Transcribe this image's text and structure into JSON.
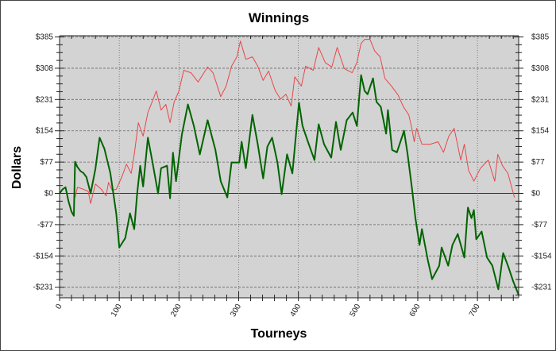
{
  "chart_data": {
    "type": "line",
    "title": "Winnings",
    "xlabel": "Tourneys",
    "ylabel": "Dollars",
    "xlim": [
      0,
      769
    ],
    "ylim": [
      -257,
      388
    ],
    "xticks": [
      0,
      100,
      200,
      300,
      400,
      500,
      600,
      700
    ],
    "xtick_labels": [
      "0",
      "100",
      "200",
      "300",
      "400",
      "500",
      "600",
      "700"
    ],
    "yticks": [
      385,
      308,
      231,
      154,
      77,
      0,
      -77,
      -154,
      -231
    ],
    "ytick_labels": [
      "$385",
      "$308",
      "$231",
      "$154",
      "$77",
      "$0",
      "-$77",
      "-$154",
      "-$231"
    ],
    "grid": true,
    "background": "#d3d3d3",
    "series": [
      {
        "color": "#006400",
        "points": [
          [
            0,
            0
          ],
          [
            5,
            10
          ],
          [
            10,
            15
          ],
          [
            15,
            -20
          ],
          [
            20,
            -45
          ],
          [
            24,
            -55
          ],
          [
            26,
            78
          ],
          [
            30,
            65
          ],
          [
            35,
            55
          ],
          [
            40,
            50
          ],
          [
            45,
            40
          ],
          [
            52,
            0
          ],
          [
            60,
            60
          ],
          [
            67,
            137
          ],
          [
            75,
            110
          ],
          [
            85,
            50
          ],
          [
            95,
            -50
          ],
          [
            100,
            -133
          ],
          [
            110,
            -110
          ],
          [
            118,
            -49
          ],
          [
            125,
            -88
          ],
          [
            130,
            0
          ],
          [
            135,
            68
          ],
          [
            140,
            17
          ],
          [
            148,
            137
          ],
          [
            155,
            82
          ],
          [
            165,
            0
          ],
          [
            170,
            62
          ],
          [
            180,
            68
          ],
          [
            185,
            -12
          ],
          [
            190,
            100
          ],
          [
            195,
            30
          ],
          [
            205,
            146
          ],
          [
            215,
            219
          ],
          [
            225,
            166
          ],
          [
            235,
            96
          ],
          [
            248,
            180
          ],
          [
            261,
            107
          ],
          [
            270,
            30
          ],
          [
            281,
            -10
          ],
          [
            288,
            76
          ],
          [
            301,
            76
          ],
          [
            305,
            127
          ],
          [
            312,
            62
          ],
          [
            323,
            193
          ],
          [
            332,
            121
          ],
          [
            341,
            37
          ],
          [
            348,
            115
          ],
          [
            356,
            137
          ],
          [
            365,
            76
          ],
          [
            372,
            -2
          ],
          [
            381,
            96
          ],
          [
            390,
            49
          ],
          [
            401,
            223
          ],
          [
            407,
            166
          ],
          [
            416,
            127
          ],
          [
            427,
            82
          ],
          [
            434,
            170
          ],
          [
            443,
            121
          ],
          [
            455,
            88
          ],
          [
            463,
            176
          ],
          [
            471,
            107
          ],
          [
            481,
            180
          ],
          [
            491,
            199
          ],
          [
            498,
            166
          ],
          [
            505,
            291
          ],
          [
            511,
            252
          ],
          [
            516,
            244
          ],
          [
            525,
            283
          ],
          [
            531,
            225
          ],
          [
            538,
            213
          ],
          [
            547,
            147
          ],
          [
            550,
            205
          ],
          [
            557,
            107
          ],
          [
            565,
            101
          ],
          [
            577,
            154
          ],
          [
            583,
            96
          ],
          [
            591,
            4
          ],
          [
            596,
            -61
          ],
          [
            603,
            -127
          ],
          [
            607,
            -88
          ],
          [
            617,
            -166
          ],
          [
            624,
            -211
          ],
          [
            636,
            -178
          ],
          [
            640,
            -133
          ],
          [
            651,
            -178
          ],
          [
            658,
            -127
          ],
          [
            667,
            -100
          ],
          [
            678,
            -158
          ],
          [
            684,
            -35
          ],
          [
            690,
            -61
          ],
          [
            694,
            -41
          ],
          [
            698,
            -113
          ],
          [
            707,
            -94
          ],
          [
            716,
            -158
          ],
          [
            725,
            -178
          ],
          [
            735,
            -236
          ],
          [
            743,
            -147
          ],
          [
            751,
            -178
          ],
          [
            760,
            -217
          ],
          [
            769,
            -250
          ]
        ]
      },
      {
        "color": "#e8474a",
        "points": [
          [
            26,
            -10
          ],
          [
            30,
            15
          ],
          [
            40,
            10
          ],
          [
            48,
            5
          ],
          [
            52,
            -25
          ],
          [
            60,
            23
          ],
          [
            70,
            10
          ],
          [
            78,
            -6
          ],
          [
            82,
            27
          ],
          [
            88,
            8
          ],
          [
            95,
            10
          ],
          [
            105,
            43
          ],
          [
            112,
            72
          ],
          [
            120,
            49
          ],
          [
            125,
            96
          ],
          [
            132,
            174
          ],
          [
            140,
            141
          ],
          [
            148,
            199
          ],
          [
            155,
            225
          ],
          [
            162,
            252
          ],
          [
            170,
            205
          ],
          [
            178,
            219
          ],
          [
            185,
            174
          ],
          [
            192,
            225
          ],
          [
            200,
            252
          ],
          [
            208,
            303
          ],
          [
            220,
            297
          ],
          [
            232,
            274
          ],
          [
            248,
            311
          ],
          [
            257,
            297
          ],
          [
            270,
            238
          ],
          [
            279,
            264
          ],
          [
            288,
            313
          ],
          [
            297,
            336
          ],
          [
            303,
            375
          ],
          [
            312,
            330
          ],
          [
            323,
            336
          ],
          [
            332,
            313
          ],
          [
            341,
            278
          ],
          [
            350,
            301
          ],
          [
            361,
            254
          ],
          [
            370,
            232
          ],
          [
            379,
            244
          ],
          [
            388,
            215
          ],
          [
            394,
            287
          ],
          [
            405,
            264
          ],
          [
            412,
            313
          ],
          [
            425,
            303
          ],
          [
            434,
            359
          ],
          [
            445,
            322
          ],
          [
            456,
            311
          ],
          [
            465,
            359
          ],
          [
            477,
            307
          ],
          [
            490,
            297
          ],
          [
            498,
            322
          ],
          [
            505,
            369
          ],
          [
            511,
            379
          ],
          [
            520,
            379
          ],
          [
            528,
            350
          ],
          [
            537,
            336
          ],
          [
            545,
            283
          ],
          [
            556,
            264
          ],
          [
            567,
            242
          ],
          [
            576,
            213
          ],
          [
            585,
            193
          ],
          [
            590,
            160
          ],
          [
            594,
            127
          ],
          [
            598,
            160
          ],
          [
            607,
            121
          ],
          [
            621,
            121
          ],
          [
            634,
            127
          ],
          [
            643,
            101
          ],
          [
            652,
            141
          ],
          [
            661,
            160
          ],
          [
            672,
            82
          ],
          [
            678,
            121
          ],
          [
            685,
            57
          ],
          [
            694,
            30
          ],
          [
            705,
            62
          ],
          [
            718,
            82
          ],
          [
            729,
            30
          ],
          [
            734,
            96
          ],
          [
            742,
            68
          ],
          [
            751,
            49
          ],
          [
            762,
            -10
          ]
        ]
      }
    ]
  }
}
